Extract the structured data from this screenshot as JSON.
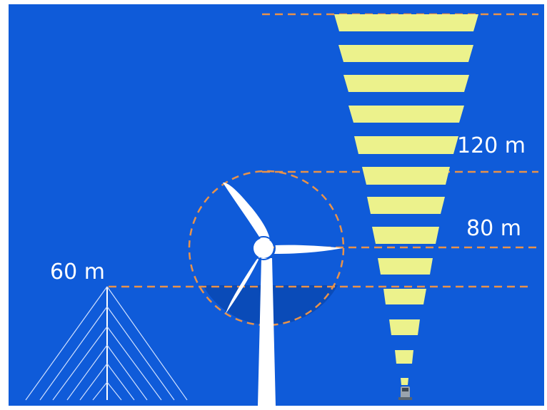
{
  "labels": {
    "h120": "120 m",
    "h80": "80 m",
    "h60": "60 m"
  },
  "colors": {
    "background": "#0f5bd9",
    "dashed_line": "#e8924a",
    "lidar_beam": "#ecf28c",
    "rotor_shade": "#0a4bb8",
    "tower": "#ffffff",
    "turbine": "#ffffff"
  },
  "icons": [
    "meteorological-mast-icon",
    "wind-turbine-icon",
    "lidar-device-icon"
  ]
}
